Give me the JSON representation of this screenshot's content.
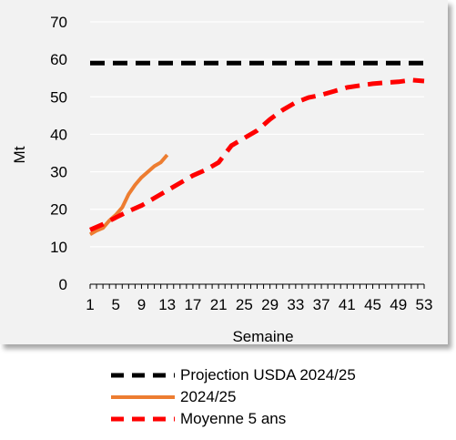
{
  "chart_data": {
    "type": "line",
    "xlabel": "Semaine",
    "ylabel": "Mt",
    "xlim": [
      1,
      53
    ],
    "ylim": [
      0,
      70
    ],
    "xticks": [
      1,
      5,
      9,
      13,
      17,
      21,
      25,
      29,
      33,
      37,
      41,
      45,
      49,
      53
    ],
    "yticks": [
      0,
      10,
      20,
      30,
      40,
      50,
      60,
      70
    ],
    "grid": true,
    "legend_position": "bottom",
    "series": [
      {
        "name": "Projection USDA 2024/25",
        "color": "#000000",
        "style": "dashed",
        "x": [
          1,
          53
        ],
        "y": [
          59,
          59
        ]
      },
      {
        "name": "2024/25",
        "color": "#ed7d31",
        "style": "solid",
        "x": [
          1,
          2,
          3,
          4,
          5,
          6,
          7,
          8,
          9,
          10,
          11,
          12,
          13
        ],
        "y": [
          13.3,
          14.3,
          15,
          17,
          18.5,
          20.5,
          24,
          26.5,
          28.5,
          30,
          31.5,
          32.5,
          34.5
        ]
      },
      {
        "name": "Moyenne 5 ans",
        "color": "#ff0000",
        "style": "dashed",
        "x": [
          1,
          3,
          5,
          7,
          9,
          11,
          13,
          15,
          17,
          19,
          21,
          23,
          25,
          27,
          29,
          31,
          33,
          35,
          37,
          39,
          41,
          43,
          45,
          47,
          49,
          51,
          53
        ],
        "y": [
          14.5,
          16,
          17.8,
          19.5,
          21,
          23,
          25,
          27,
          29,
          30.5,
          32.5,
          37,
          39,
          41,
          44,
          46.5,
          48.5,
          49.8,
          50.5,
          51.5,
          52.5,
          53,
          53.5,
          53.8,
          54,
          54.5,
          54.2
        ]
      }
    ]
  }
}
